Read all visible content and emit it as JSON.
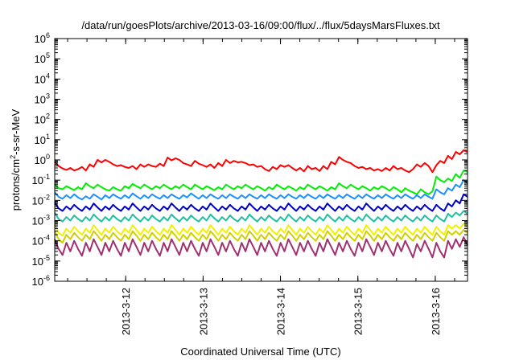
{
  "chart_data": {
    "type": "line",
    "title": "/data/run/goesPlots/archive/2013-03-16/09:00/flux/../flux/5daysMarsFluxes.txt",
    "xlabel": "Coordinated Universal Time (UTC)",
    "ylabel": {
      "prefix": "protons/cm",
      "sup": "2",
      "suffix": "-s-sr-MeV"
    },
    "y_scale": "log",
    "ylim": [
      1e-06,
      1000000.0
    ],
    "y_ticks": [
      {
        "base": "10",
        "exp": "-6",
        "value": 1e-06
      },
      {
        "base": "10",
        "exp": "-5",
        "value": 1e-05
      },
      {
        "base": "10",
        "exp": "-4",
        "value": 0.0001
      },
      {
        "base": "10",
        "exp": "-3",
        "value": 0.001
      },
      {
        "base": "10",
        "exp": "-2",
        "value": 0.01
      },
      {
        "base": "10",
        "exp": "-1",
        "value": 0.1
      },
      {
        "base": "10",
        "exp": "0",
        "value": 1
      },
      {
        "base": "10",
        "exp": "1",
        "value": 10
      },
      {
        "base": "10",
        "exp": "2",
        "value": 100
      },
      {
        "base": "10",
        "exp": "3",
        "value": 1000
      },
      {
        "base": "10",
        "exp": "4",
        "value": 10000
      },
      {
        "base": "10",
        "exp": "5",
        "value": 100000
      },
      {
        "base": "10",
        "exp": "6",
        "value": 1000000
      }
    ],
    "xlim": [
      "2013-03-11 02:00",
      "2013-03-16 10:00"
    ],
    "x_ticks": [
      "2013-3-12",
      "2013-3-13",
      "2013-3-14",
      "2013-3-15",
      "2013-3-16"
    ],
    "grid": false,
    "legend": "none",
    "series": [
      {
        "color": "#ff0000",
        "values": [
          0.8,
          0.5,
          0.38,
          0.32,
          0.4,
          0.3,
          0.35,
          0.45,
          0.3,
          0.6,
          0.45,
          1.0,
          0.75,
          1.0,
          0.8,
          0.6,
          0.5,
          0.55,
          0.45,
          0.4,
          0.5,
          0.35,
          0.6,
          0.45,
          0.6,
          0.5,
          0.45,
          0.65,
          0.5,
          1.3,
          0.95,
          1.2,
          1.0,
          0.7,
          0.6,
          0.5,
          0.9,
          0.65,
          0.55,
          0.45,
          0.6,
          0.4,
          0.7,
          0.5,
          1.0,
          0.7,
          0.9,
          0.75,
          0.8,
          0.7,
          0.55,
          0.6,
          0.45,
          0.5,
          0.35,
          0.28,
          0.45,
          0.35,
          0.55,
          0.45,
          0.55,
          0.4,
          0.3,
          0.4,
          0.27,
          0.5,
          0.35,
          0.4,
          0.28,
          0.5,
          0.35,
          0.8,
          0.6,
          1.4,
          1.0,
          0.8,
          0.7,
          0.5,
          0.4,
          0.45,
          0.35,
          0.4,
          0.3,
          0.35,
          0.28,
          0.4,
          0.3,
          0.5,
          0.35,
          0.4,
          0.3,
          0.25,
          0.35,
          0.6,
          0.45,
          0.7,
          0.5,
          0.25,
          0.55,
          0.9,
          0.7,
          1.6,
          1.1,
          2.5,
          1.9,
          3.0,
          2.4
        ]
      },
      {
        "color": "#00ee00",
        "values": [
          0.06,
          0.04,
          0.035,
          0.05,
          0.04,
          0.032,
          0.045,
          0.035,
          0.07,
          0.05,
          0.04,
          0.06,
          0.045,
          0.035,
          0.03,
          0.045,
          0.035,
          0.03,
          0.05,
          0.04,
          0.065,
          0.05,
          0.04,
          0.06,
          0.045,
          0.035,
          0.05,
          0.04,
          0.06,
          0.045,
          0.035,
          0.05,
          0.04,
          0.06,
          0.045,
          0.035,
          0.06,
          0.045,
          0.035,
          0.05,
          0.04,
          0.032,
          0.045,
          0.035,
          0.06,
          0.045,
          0.035,
          0.05,
          0.04,
          0.06,
          0.045,
          0.035,
          0.05,
          0.04,
          0.03,
          0.045,
          0.035,
          0.06,
          0.045,
          0.035,
          0.05,
          0.04,
          0.03,
          0.045,
          0.035,
          0.06,
          0.045,
          0.035,
          0.05,
          0.04,
          0.03,
          0.045,
          0.035,
          0.07,
          0.05,
          0.04,
          0.06,
          0.045,
          0.035,
          0.05,
          0.04,
          0.03,
          0.045,
          0.035,
          0.05,
          0.04,
          0.03,
          0.045,
          0.035,
          0.025,
          0.04,
          0.03,
          0.025,
          0.02,
          0.035,
          0.025,
          0.02,
          0.028,
          0.15,
          0.1,
          0.08,
          0.12,
          0.09,
          0.2,
          0.13,
          0.3,
          0.25
        ]
      },
      {
        "color": "#1e90ff",
        "values": [
          0.025,
          0.015,
          0.012,
          0.018,
          0.013,
          0.02,
          0.014,
          0.011,
          0.016,
          0.012,
          0.02,
          0.015,
          0.011,
          0.018,
          0.013,
          0.02,
          0.015,
          0.012,
          0.018,
          0.013,
          0.022,
          0.016,
          0.012,
          0.018,
          0.013,
          0.02,
          0.015,
          0.012,
          0.018,
          0.013,
          0.02,
          0.015,
          0.012,
          0.018,
          0.014,
          0.022,
          0.016,
          0.012,
          0.018,
          0.013,
          0.02,
          0.015,
          0.012,
          0.018,
          0.013,
          0.02,
          0.015,
          0.012,
          0.018,
          0.013,
          0.02,
          0.015,
          0.012,
          0.018,
          0.013,
          0.02,
          0.015,
          0.012,
          0.018,
          0.013,
          0.02,
          0.015,
          0.012,
          0.018,
          0.013,
          0.02,
          0.015,
          0.012,
          0.018,
          0.013,
          0.02,
          0.015,
          0.012,
          0.018,
          0.013,
          0.02,
          0.015,
          0.012,
          0.018,
          0.013,
          0.02,
          0.015,
          0.012,
          0.018,
          0.013,
          0.02,
          0.015,
          0.012,
          0.018,
          0.013,
          0.02,
          0.015,
          0.012,
          0.018,
          0.013,
          0.02,
          0.015,
          0.012,
          0.035,
          0.025,
          0.02,
          0.04,
          0.03,
          0.06,
          0.045,
          0.1,
          0.07
        ]
      },
      {
        "color": "#0000cc",
        "values": [
          0.008,
          0.004,
          0.003,
          0.005,
          0.0035,
          0.006,
          0.004,
          0.003,
          0.005,
          0.0035,
          0.007,
          0.0045,
          0.003,
          0.005,
          0.0035,
          0.006,
          0.004,
          0.003,
          0.005,
          0.0035,
          0.007,
          0.0045,
          0.003,
          0.005,
          0.0035,
          0.006,
          0.004,
          0.003,
          0.005,
          0.0035,
          0.007,
          0.0045,
          0.003,
          0.005,
          0.0035,
          0.006,
          0.004,
          0.003,
          0.005,
          0.0035,
          0.007,
          0.0045,
          0.003,
          0.005,
          0.0035,
          0.006,
          0.004,
          0.003,
          0.005,
          0.0035,
          0.007,
          0.0045,
          0.003,
          0.005,
          0.0035,
          0.006,
          0.004,
          0.003,
          0.005,
          0.0035,
          0.007,
          0.0045,
          0.003,
          0.005,
          0.0035,
          0.006,
          0.004,
          0.003,
          0.005,
          0.0035,
          0.007,
          0.0045,
          0.003,
          0.005,
          0.0035,
          0.006,
          0.004,
          0.003,
          0.005,
          0.0035,
          0.007,
          0.0045,
          0.003,
          0.005,
          0.0035,
          0.006,
          0.004,
          0.003,
          0.005,
          0.0035,
          0.006,
          0.004,
          0.003,
          0.005,
          0.0035,
          0.006,
          0.004,
          0.003,
          0.006,
          0.004,
          0.003,
          0.007,
          0.005,
          0.01,
          0.007,
          0.02,
          0.015
        ]
      },
      {
        "color": "#20c0a0",
        "values": [
          0.0025,
          0.0012,
          0.0009,
          0.0015,
          0.001,
          0.0018,
          0.0012,
          0.0009,
          0.0015,
          0.001,
          0.002,
          0.0013,
          0.0009,
          0.0015,
          0.001,
          0.0018,
          0.0012,
          0.0009,
          0.0015,
          0.001,
          0.002,
          0.0013,
          0.0009,
          0.0015,
          0.001,
          0.0018,
          0.0012,
          0.0009,
          0.0015,
          0.001,
          0.002,
          0.0013,
          0.0009,
          0.0015,
          0.001,
          0.0018,
          0.0012,
          0.0009,
          0.0015,
          0.001,
          0.002,
          0.0013,
          0.0009,
          0.0015,
          0.001,
          0.0018,
          0.0012,
          0.0009,
          0.0015,
          0.001,
          0.002,
          0.0013,
          0.0009,
          0.0015,
          0.001,
          0.0018,
          0.0012,
          0.0009,
          0.0015,
          0.001,
          0.002,
          0.0013,
          0.0009,
          0.0015,
          0.001,
          0.0018,
          0.0012,
          0.0009,
          0.0015,
          0.001,
          0.002,
          0.0013,
          0.0009,
          0.0015,
          0.001,
          0.0018,
          0.0012,
          0.0009,
          0.0015,
          0.001,
          0.002,
          0.0013,
          0.0009,
          0.0015,
          0.001,
          0.0018,
          0.0012,
          0.0009,
          0.0015,
          0.001,
          0.0018,
          0.0012,
          0.0009,
          0.0015,
          0.001,
          0.0018,
          0.0012,
          0.0009,
          0.0018,
          0.0012,
          0.0009,
          0.0022,
          0.0015,
          0.0025,
          0.0018,
          0.003,
          0.0022
        ]
      },
      {
        "color": "#f0f000",
        "values": [
          0.0006,
          0.00025,
          0.00018,
          0.0004,
          0.00025,
          0.0005,
          0.0003,
          0.0002,
          0.0004,
          0.00025,
          0.0006,
          0.00035,
          0.0002,
          0.0004,
          0.00025,
          0.0005,
          0.0003,
          0.0002,
          0.0004,
          0.00025,
          0.0006,
          0.00035,
          0.0002,
          0.0004,
          0.00025,
          0.0005,
          0.0003,
          0.0002,
          0.0004,
          0.00025,
          0.0006,
          0.00035,
          0.0002,
          0.0004,
          0.00025,
          0.0005,
          0.0003,
          0.0002,
          0.0004,
          0.00025,
          0.0006,
          0.00035,
          0.0002,
          0.0004,
          0.00025,
          0.0005,
          0.0003,
          0.0002,
          0.0004,
          0.00025,
          0.0006,
          0.00035,
          0.0002,
          0.0004,
          0.00025,
          0.0005,
          0.0003,
          0.0002,
          0.0004,
          0.00025,
          0.0006,
          0.00035,
          0.0002,
          0.0004,
          0.00025,
          0.0005,
          0.0003,
          0.0002,
          0.0004,
          0.00025,
          0.0006,
          0.00035,
          0.0002,
          0.0004,
          0.00025,
          0.0005,
          0.0003,
          0.0002,
          0.0004,
          0.00025,
          0.0006,
          0.00035,
          0.0002,
          0.0004,
          0.00025,
          0.0005,
          0.0003,
          0.0002,
          0.0004,
          0.00025,
          0.0005,
          0.0003,
          0.0002,
          0.0004,
          0.00025,
          0.0005,
          0.0003,
          0.0002,
          0.0005,
          0.0003,
          0.0002,
          0.0006,
          0.0004,
          0.0006,
          0.0004,
          0.0007,
          0.0005
        ]
      },
      {
        "color": "#d0d000",
        "values": [
          0.0003,
          0.00012,
          8e-05,
          0.0002,
          0.00012,
          0.00025,
          0.00015,
          0.0001,
          0.0002,
          0.00012,
          0.0003,
          0.00018,
          0.0001,
          0.0002,
          0.00012,
          0.00025,
          0.00015,
          0.0001,
          0.0002,
          0.00012,
          0.0003,
          0.00018,
          0.0001,
          0.0002,
          0.00012,
          0.00025,
          0.00015,
          0.0001,
          0.0002,
          0.00012,
          0.0003,
          0.00018,
          0.0001,
          0.0002,
          0.00012,
          0.00025,
          0.00015,
          0.0001,
          0.0002,
          0.00012,
          0.0003,
          0.00018,
          0.0001,
          0.0002,
          0.00012,
          0.00025,
          0.00015,
          0.0001,
          0.0002,
          0.00012,
          0.0003,
          0.00018,
          0.0001,
          0.0002,
          0.00012,
          0.00025,
          0.00015,
          0.0001,
          0.0002,
          0.00012,
          0.0003,
          0.00018,
          0.0001,
          0.0002,
          0.00012,
          0.00025,
          0.00015,
          0.0001,
          0.0002,
          0.00012,
          0.0003,
          0.00018,
          0.0001,
          0.0002,
          0.00012,
          0.00025,
          0.00015,
          0.0001,
          0.0002,
          0.00012,
          0.0003,
          0.00018,
          0.0001,
          0.0002,
          0.00012,
          0.00025,
          0.00015,
          0.0001,
          0.0002,
          0.00012,
          0.00025,
          0.00015,
          0.0001,
          0.0002,
          0.00012,
          0.00025,
          0.00015,
          0.0001,
          0.00025,
          0.00015,
          0.0001,
          0.0003,
          0.0002,
          0.0003,
          0.0002,
          0.00035,
          0.00025
        ]
      },
      {
        "color": "#a03070",
        "values": [
          0.00012,
          4e-05,
          2e-05,
          8e-05,
          3e-05,
          0.0001,
          4e-05,
          1.8e-05,
          8e-05,
          3e-05,
          0.00012,
          5e-05,
          2e-05,
          8e-05,
          3e-05,
          0.0001,
          4e-05,
          1.8e-05,
          8e-05,
          3e-05,
          0.00012,
          5e-05,
          2e-05,
          8e-05,
          3e-05,
          0.0001,
          4e-05,
          1.8e-05,
          8e-05,
          3e-05,
          0.00012,
          5e-05,
          2e-05,
          8e-05,
          3e-05,
          0.0001,
          4e-05,
          1.8e-05,
          8e-05,
          3e-05,
          0.00012,
          5e-05,
          2e-05,
          8e-05,
          3e-05,
          0.0001,
          4e-05,
          1.8e-05,
          8e-05,
          3e-05,
          0.00012,
          5e-05,
          2e-05,
          8e-05,
          3e-05,
          0.0001,
          4e-05,
          1.8e-05,
          8e-05,
          3e-05,
          0.00012,
          5e-05,
          2e-05,
          8e-05,
          3e-05,
          0.0001,
          4e-05,
          1.8e-05,
          8e-05,
          3e-05,
          0.00012,
          5e-05,
          2e-05,
          8e-05,
          3e-05,
          0.0001,
          4e-05,
          1.8e-05,
          8e-05,
          3e-05,
          0.00012,
          5e-05,
          2e-05,
          8e-05,
          3e-05,
          0.0001,
          4e-05,
          1.8e-05,
          8e-05,
          3e-05,
          0.0001,
          4e-05,
          1.5e-05,
          7e-05,
          3e-05,
          0.0001,
          4e-05,
          1.5e-05,
          8e-05,
          3e-05,
          1.5e-05,
          0.0001,
          4e-05,
          0.00012,
          5e-05,
          0.00015,
          6e-05
        ]
      }
    ]
  }
}
